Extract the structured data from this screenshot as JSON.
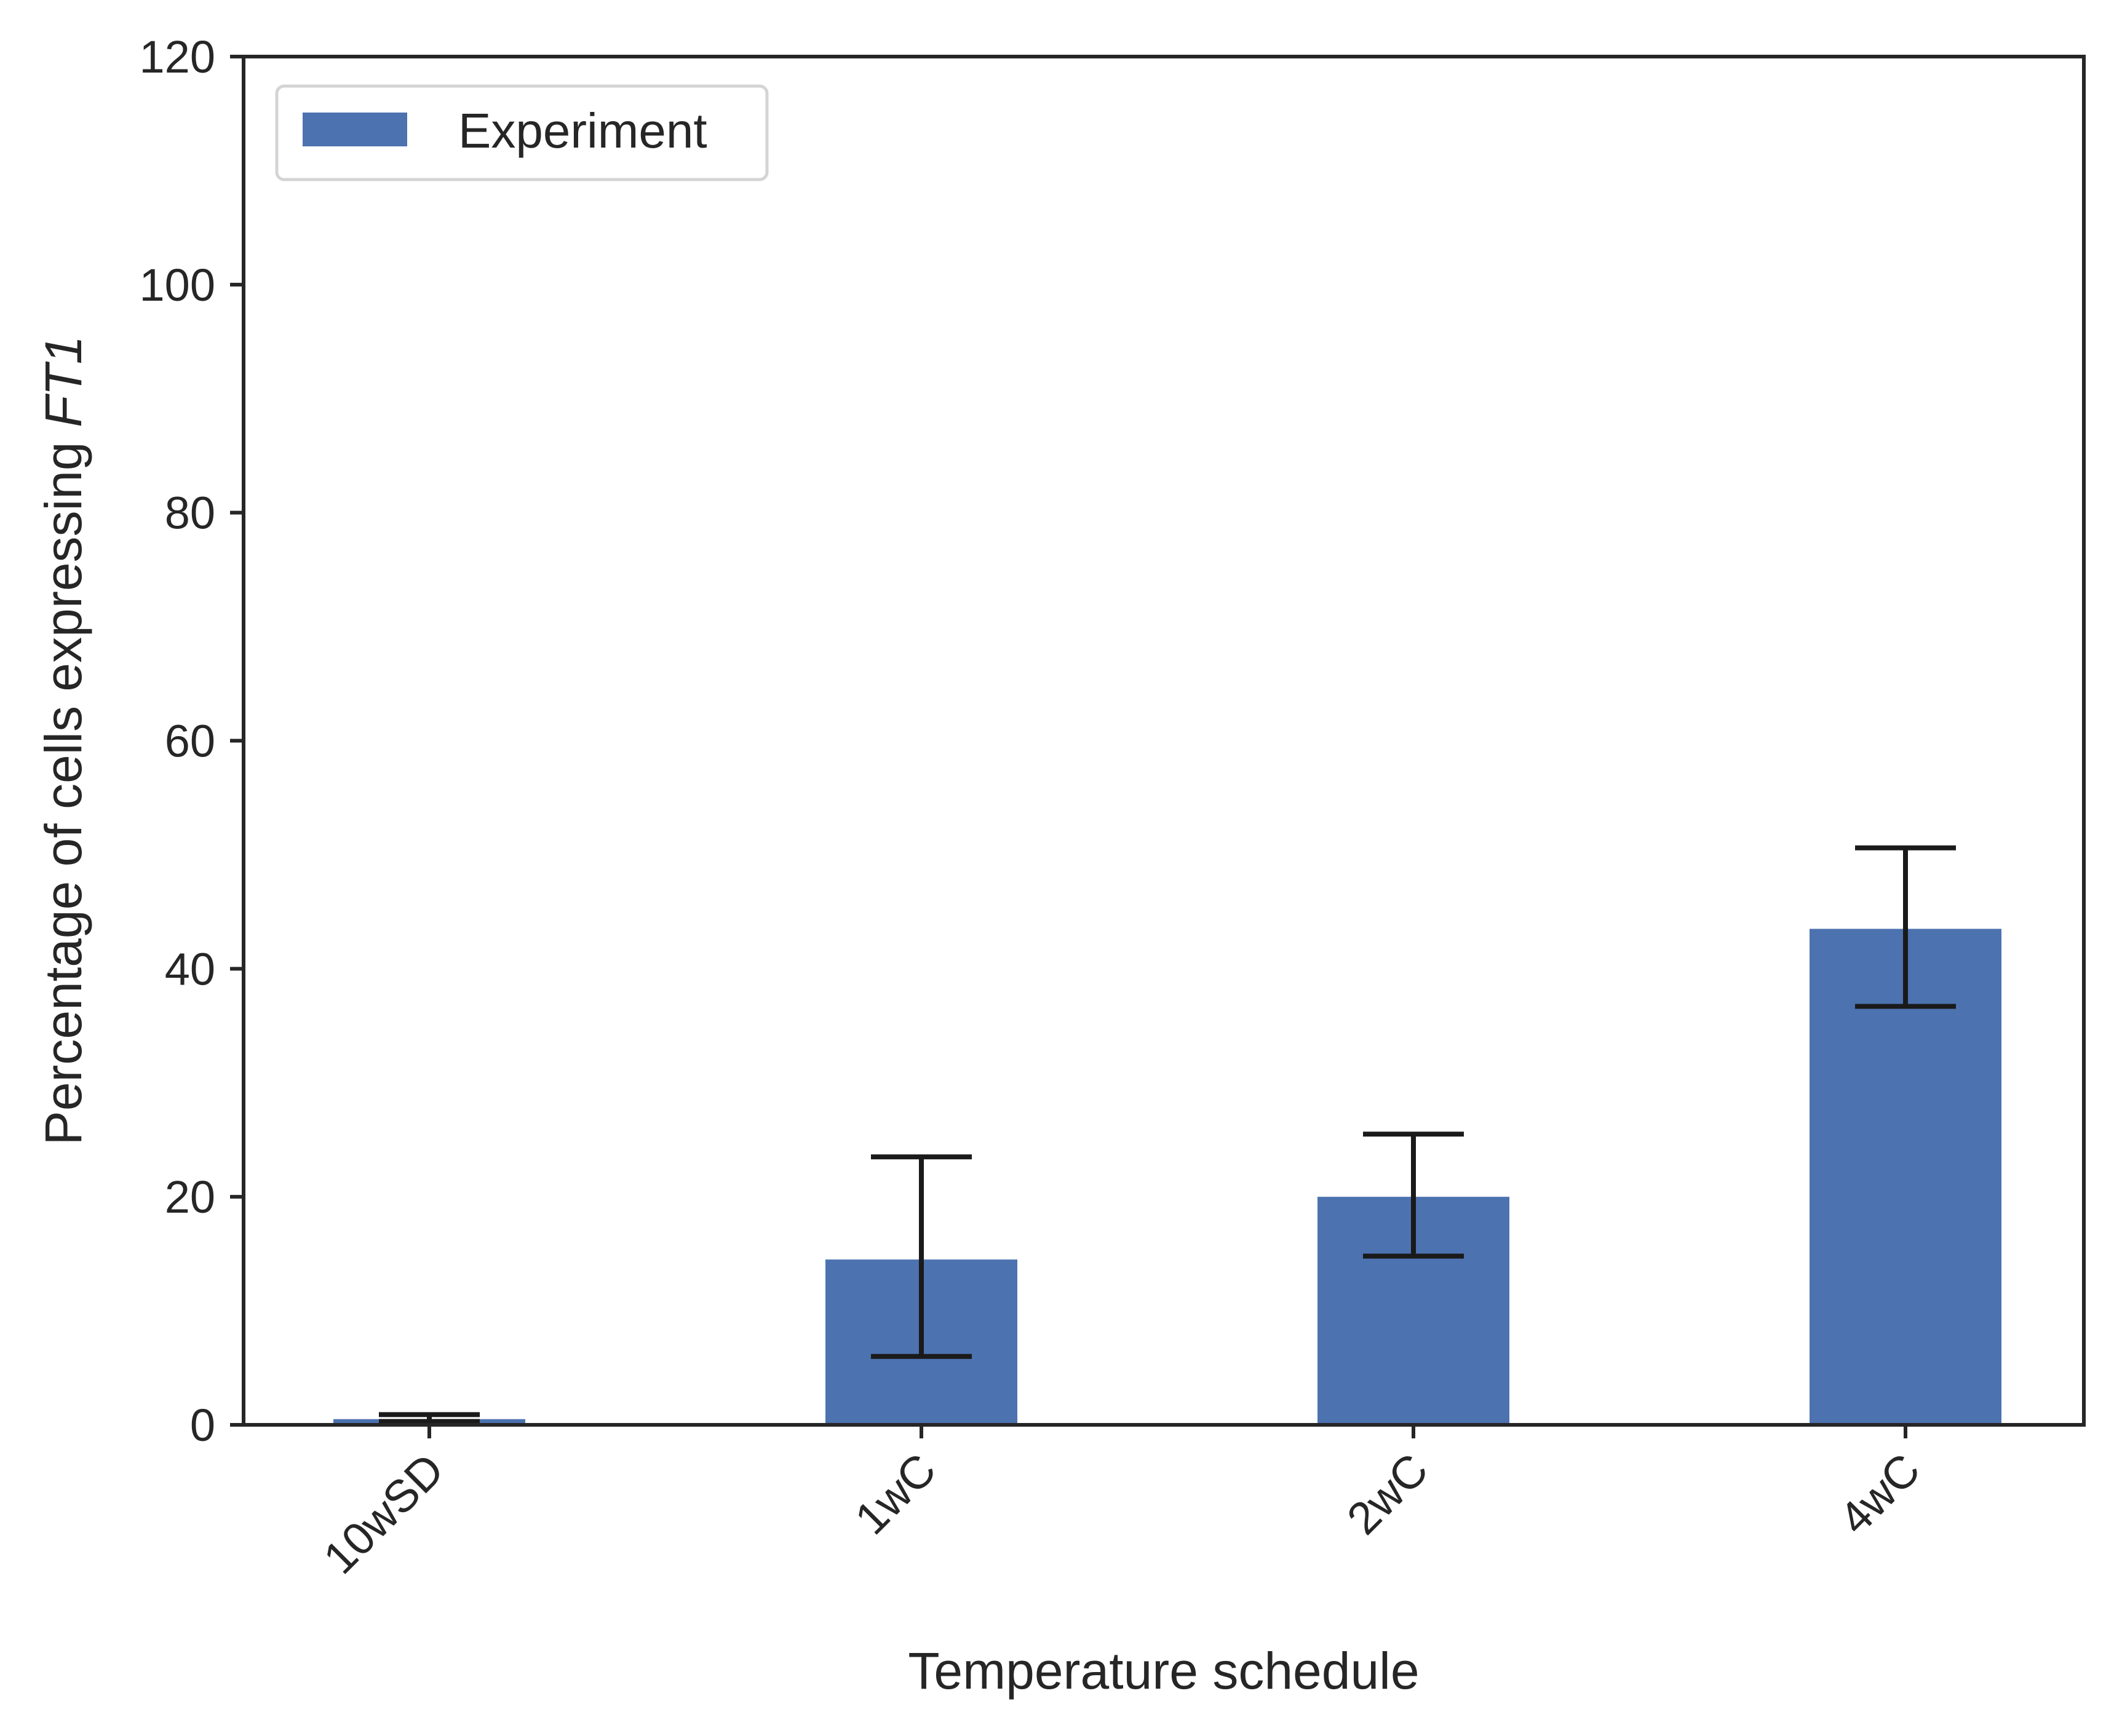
{
  "chart_data": {
    "type": "bar",
    "xlabel": "Temperature schedule",
    "ylabel": "Percentage of cells expressing",
    "ylabel_italic": "FT1",
    "categories": [
      "10wSD",
      "1wC",
      "2wC",
      "4wC"
    ],
    "series": [
      {
        "name": "Experiment",
        "color": "#4c72b0",
        "values": [
          0.5,
          14.5,
          20.0,
          43.5
        ],
        "error_low": [
          0.3,
          6.0,
          14.8,
          36.7
        ],
        "error_high": [
          0.9,
          23.5,
          25.5,
          50.6
        ]
      }
    ],
    "ylim": [
      0,
      120
    ],
    "yticks": [
      "0",
      "20",
      "40",
      "60",
      "80",
      "100",
      "120"
    ],
    "legend_position": "upper left",
    "grid": false,
    "error_color": "#1a1a1a",
    "axis_color": "#262626"
  }
}
